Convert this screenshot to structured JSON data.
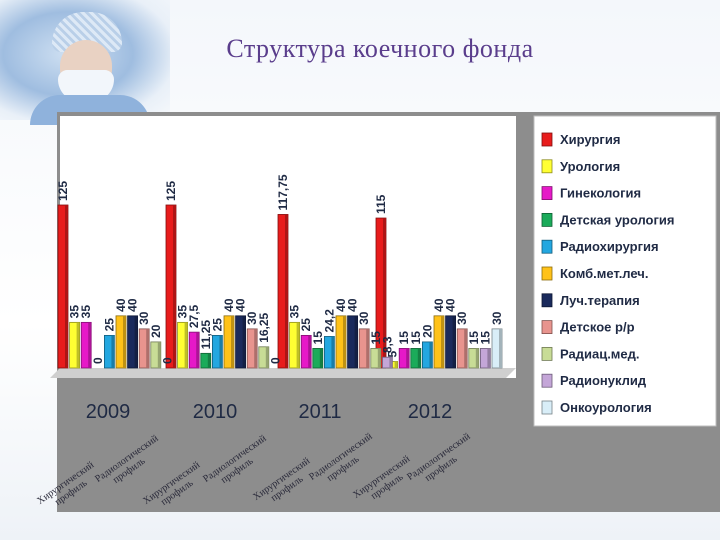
{
  "page": {
    "title": "Структура коечного фонда"
  },
  "chart_data": {
    "type": "bar",
    "title": "",
    "xlabel": "",
    "ylabel": "",
    "ylim": [
      0,
      130
    ],
    "grid": false,
    "legend_position": "right",
    "categories": [
      "2009",
      "2010",
      "2011",
      "2012"
    ],
    "series": [
      {
        "name": "Хирургия",
        "color": "#e81c1c",
        "values": [
          125,
          125,
          117.75,
          115
        ],
        "labels": [
          "125",
          "125",
          "117,75",
          "115"
        ]
      },
      {
        "name": "Урология",
        "color": "#ffff33",
        "values": [
          35,
          35,
          35,
          5
        ],
        "labels": [
          "35",
          "35",
          "35",
          "5"
        ]
      },
      {
        "name": "Гинекология",
        "color": "#e619c8",
        "values": [
          35,
          27.5,
          25,
          15
        ],
        "labels": [
          "35",
          "27,5",
          "25",
          "15"
        ]
      },
      {
        "name": "Детская урология",
        "color": "#1bab5a",
        "values": [
          0,
          11.25,
          15,
          15
        ],
        "labels": [
          "0",
          "11,25",
          "15",
          "15"
        ]
      },
      {
        "name": "Радиохирургия",
        "color": "#23a7e0",
        "values": [
          25,
          25,
          24.2,
          20
        ],
        "labels": [
          "25",
          "25",
          "24,2",
          "20"
        ]
      },
      {
        "name": "Комб.мет.леч.",
        "color": "#ffc219",
        "values": [
          40,
          40,
          40,
          40
        ],
        "labels": [
          "40",
          "40",
          "40",
          "40"
        ]
      },
      {
        "name": "Луч.терапия",
        "color": "#1a2a5c",
        "values": [
          40,
          40,
          40,
          40
        ],
        "labels": [
          "40",
          "40",
          "40",
          "40"
        ]
      },
      {
        "name": "Детское р/р",
        "color": "#e8948e",
        "values": [
          30,
          30,
          30,
          30
        ],
        "labels": [
          "30",
          "30",
          "30",
          "30"
        ]
      },
      {
        "name": "Радиац.мед.",
        "color": "#c8dc96",
        "values": [
          20,
          16.25,
          15,
          15
        ],
        "labels": [
          "20",
          "16,25",
          "15",
          "15"
        ]
      },
      {
        "name": "Радионуклид",
        "color": "#c4a6d8",
        "values": [
          0,
          0,
          8.3,
          15
        ],
        "labels": [
          "0",
          "0",
          "8,3",
          "15"
        ]
      },
      {
        "name": "Онкоурология",
        "color": "#d9eef8",
        "values": [
          0,
          0,
          0,
          30
        ],
        "labels": [
          "",
          "",
          "",
          "30"
        ]
      }
    ],
    "annotations": [
      "Хирургический профиль",
      "Радиологический профиль",
      "Хирургический профиль",
      "Радиологический профиль",
      "Хирургический профиль",
      "Радиологический профиль",
      "Хирургический профиль",
      "Радиологический профиль"
    ]
  }
}
